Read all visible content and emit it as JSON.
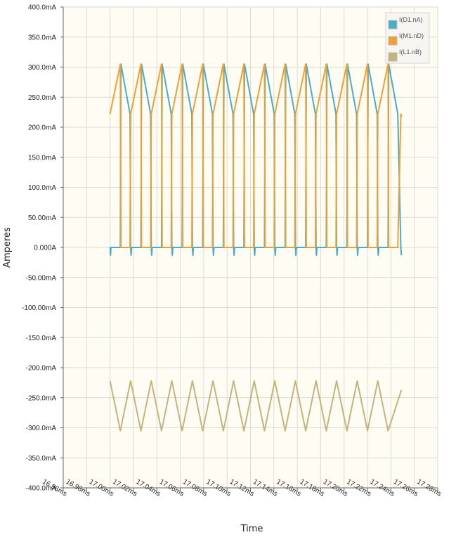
{
  "chart_data": {
    "type": "line",
    "title": "",
    "xlabel": "Time",
    "ylabel": "Amperes",
    "xlim": [
      16.96,
      17.28
    ],
    "ylim": [
      -400,
      400
    ],
    "x_ticks": [
      16.96,
      16.98,
      17.0,
      17.02,
      17.04,
      17.06,
      17.08,
      17.1,
      17.12,
      17.14,
      17.16,
      17.18,
      17.2,
      17.22,
      17.24,
      17.26,
      17.28
    ],
    "x_tick_labels": [
      "16.96ms",
      "16.98ms",
      "17.00ms",
      "17.02ms",
      "17.04ms",
      "17.06ms",
      "17.08ms",
      "17.10ms",
      "17.12ms",
      "17.14ms",
      "17.16ms",
      "17.18ms",
      "17.20ms",
      "17.22ms",
      "17.24ms",
      "17.26ms",
      "17.28ms"
    ],
    "y_ticks": [
      400,
      350,
      300,
      250,
      200,
      150,
      100,
      50,
      0,
      -50,
      -100,
      -150,
      -200,
      -250,
      -300,
      -350,
      -400
    ],
    "y_tick_labels": [
      "400.0mA",
      "350.0mA",
      "300.0mA",
      "250.0mA",
      "200.0mA",
      "150.0mA",
      "100.0mA",
      "50.00mA",
      "0.000A",
      "-50.00mA",
      "-100.00mA",
      "-150.0mA",
      "-200.0mA",
      "-250.0mA",
      "-300.0mA",
      "-350.0mA",
      "-400.0mA"
    ],
    "grid": true,
    "legend_position": "top-right",
    "waveform": {
      "start": 17.0,
      "end": 17.249,
      "period": 0.0176,
      "duty": 0.5,
      "peak_ma": 305,
      "valley_ma": 222,
      "undershoot_ma": -13
    },
    "series": [
      {
        "name": "I(D1.nA)",
        "color": "#4bacc6"
      },
      {
        "name": "I(M1.nD)",
        "color": "#f0a030"
      },
      {
        "name": "I(L1.nB)",
        "color": "#c4b47c"
      }
    ]
  }
}
